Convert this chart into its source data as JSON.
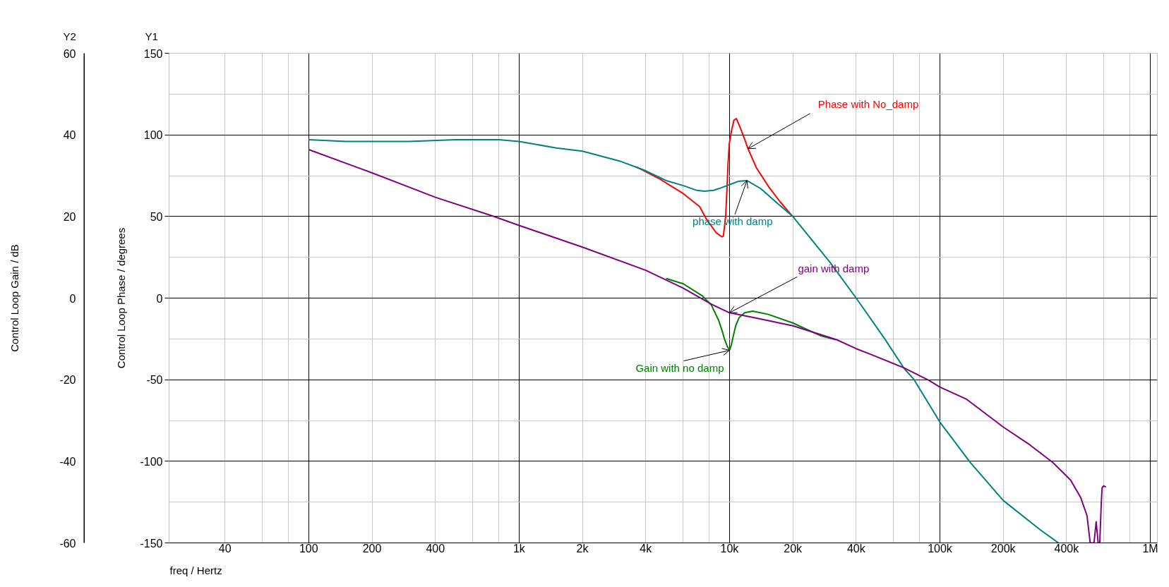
{
  "chart_data": {
    "type": "line",
    "xlabel": "freq / Hertz",
    "ylabel": "Control Loop Phase / degrees",
    "y2label": "Control Loop Gain / dB",
    "annotations": [
      "Y2",
      "Y1"
    ],
    "log": "x",
    "grid": true,
    "xlim": [
      21.7,
      1080000
    ],
    "xticks": [
      40,
      {
        "value": 60,
        "label": null
      },
      {
        "value": 80,
        "label": null
      },
      100,
      200,
      400,
      {
        "value": 600,
        "label": null
      },
      {
        "value": 800,
        "label": null
      },
      {
        "value": 1000,
        "label": "1k"
      },
      {
        "value": 2000,
        "label": "2k"
      },
      {
        "value": 4000,
        "label": "4k"
      },
      {
        "value": 6000,
        "label": null
      },
      {
        "value": 8000,
        "label": null
      },
      {
        "value": 10000,
        "label": "10k"
      },
      {
        "value": 20000,
        "label": "20k"
      },
      {
        "value": 40000,
        "label": "40k"
      },
      {
        "value": 60000,
        "label": null
      },
      {
        "value": 80000,
        "label": null
      },
      {
        "value": 100000,
        "label": "100k"
      },
      {
        "value": 200000,
        "label": "200k"
      },
      {
        "value": 400000,
        "label": "400k"
      },
      {
        "value": 600000,
        "label": null
      },
      {
        "value": 800000,
        "label": null
      },
      {
        "value": 1000000,
        "label": "1M"
      }
    ],
    "ylim": [
      -150,
      150
    ],
    "yticks": [
      150,
      {
        "value": 125,
        "label": null
      },
      100,
      {
        "value": 75,
        "label": null
      },
      50,
      {
        "value": 25,
        "label": null
      },
      0,
      {
        "value": -25,
        "label": null
      },
      -50,
      {
        "value": -75,
        "label": null
      },
      -100,
      {
        "value": -125,
        "label": null
      },
      -150
    ],
    "y2lim": [
      -60,
      60
    ],
    "y2ticks": [
      60,
      40,
      20,
      0,
      -20,
      -40,
      -60
    ],
    "series": [
      {
        "name": "Phase with No_damp",
        "color": "#ff0000",
        "x": [
          3600,
          4660,
          6030,
          7220,
          7800,
          8650,
          9220,
          9350,
          9590,
          9720,
          9850,
          9970,
          10240,
          10500,
          10780,
          11200,
          11790,
          12250,
          13400,
          15300,
          17400,
          19800
        ],
        "values": [
          80.5,
          73,
          64,
          56,
          48,
          40,
          37.5,
          38,
          50,
          66,
          83,
          94.5,
          103,
          109,
          110,
          105,
          97.5,
          91.5,
          80,
          68.5,
          59,
          50.5
        ]
      },
      {
        "name": "phase with damp",
        "color": "#008080",
        "x": [
          100,
          150,
          200,
          300,
          500,
          800,
          1000,
          1500,
          2000,
          3000,
          4000,
          5000,
          6000,
          7000,
          7600,
          8400,
          9100,
          10000,
          11000,
          12100,
          14100,
          16900,
          20000,
          30000,
          40000,
          54700,
          67500,
          75400,
          100000,
          140000,
          200000,
          300000,
          366000
        ],
        "values": [
          97,
          96,
          96,
          96,
          97,
          97,
          96,
          92,
          90,
          84,
          78,
          72,
          69,
          66,
          65.5,
          66,
          67.5,
          69.5,
          71.5,
          72,
          67,
          58,
          50,
          22,
          0,
          -25,
          -43,
          -50,
          -76,
          -101,
          -124,
          -142,
          -150
        ]
      },
      {
        "name": "Gain with no damp",
        "color": "#008000",
        "axis": "y2",
        "x": [
          5000,
          6030,
          7410,
          8200,
          8870,
          9200,
          9460,
          9750,
          10000,
          10200,
          10400,
          10700,
          11100,
          11800,
          12900,
          15300,
          20000,
          27000,
          32000
        ],
        "values": [
          4.8,
          3.5,
          0.6,
          -1.7,
          -5.4,
          -7.8,
          -10,
          -11.8,
          -12.8,
          -11.5,
          -9.5,
          -6.8,
          -4.8,
          -3.6,
          -3.2,
          -4,
          -6.1,
          -9.2,
          -10.2
        ]
      },
      {
        "name": "gain with damp",
        "color": "#800080",
        "axis": "y2",
        "x": [
          100,
          200,
          400,
          750,
          1000,
          2000,
          4000,
          6000,
          8200,
          10000,
          13100,
          20000,
          32300,
          40000,
          47500,
          67500,
          89000,
          100000,
          134000,
          200000,
          268000,
          344000,
          418000,
          467000,
          500000,
          518000,
          540000,
          553000,
          565000,
          575000,
          585000,
          590000,
          600000,
          615000
        ],
        "values": [
          36.4,
          30.7,
          24.7,
          20.1,
          17.8,
          12.5,
          6.8,
          2.5,
          -1.5,
          -3.6,
          -4.8,
          -6.8,
          -10.2,
          -12.4,
          -13.9,
          -17.1,
          -20.2,
          -21.8,
          -24.8,
          -31.6,
          -36,
          -40.3,
          -44.6,
          -48.9,
          -53.3,
          -60,
          -60,
          -54.8,
          -60,
          -60,
          -50,
          -46.5,
          -46,
          -46.3
        ]
      }
    ]
  }
}
